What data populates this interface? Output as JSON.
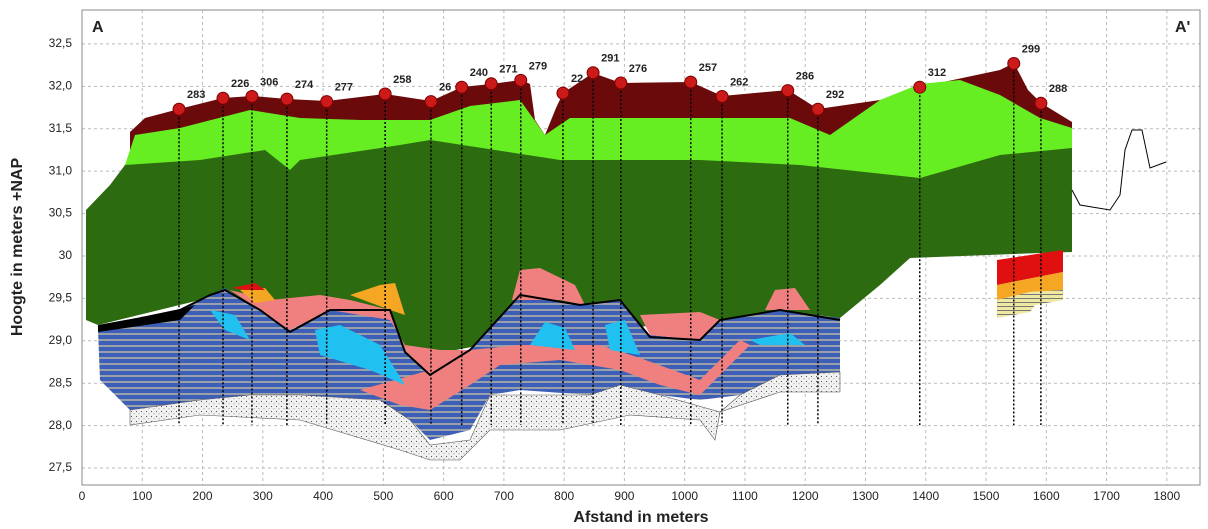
{
  "chart_data": {
    "type": "cross-section",
    "annotations": [
      "A",
      "A'"
    ],
    "xlabel": "Afstand in meters",
    "ylabel": "Hoogte in meters +NAP",
    "xlim": [
      0,
      1855
    ],
    "ylim": [
      27.3,
      32.9
    ],
    "xticks": [
      0,
      100,
      200,
      300,
      400,
      500,
      600,
      700,
      800,
      900,
      1000,
      1100,
      1200,
      1300,
      1400,
      1500,
      1600,
      1700,
      1800
    ],
    "yticks": [
      {
        "value": 27.5,
        "label": "27,5"
      },
      {
        "value": 28.0,
        "label": "28,0"
      },
      {
        "value": 28.5,
        "label": "28,5"
      },
      {
        "value": 29.0,
        "label": "29,0"
      },
      {
        "value": 29.5,
        "label": "29,5"
      },
      30,
      {
        "value": 30.5,
        "label": "30,5"
      },
      {
        "value": 31.0,
        "label": "31,0"
      },
      {
        "value": 31.5,
        "label": "31,5"
      },
      {
        "value": 32.0,
        "label": "32,0"
      },
      {
        "value": 32.5,
        "label": "32,5"
      }
    ],
    "grid": true,
    "marker_color": "#cc1a1a",
    "labels": [
      "283",
      "226",
      "306",
      "274",
      "277",
      "258",
      "26",
      "240",
      "271",
      "279",
      "22",
      "291",
      "276",
      "257",
      "262",
      "286",
      "292",
      "312",
      "299",
      "288"
    ],
    "x": [
      161,
      234,
      282,
      340,
      406,
      503,
      579,
      630,
      679,
      728,
      798,
      848,
      894,
      1010,
      1062,
      1171,
      1221,
      1390,
      1546,
      1591
    ],
    "values": [
      31.73,
      31.86,
      31.88,
      31.85,
      31.82,
      31.91,
      31.82,
      31.99,
      32.03,
      32.07,
      31.92,
      32.16,
      32.04,
      32.05,
      31.88,
      31.95,
      31.73,
      31.99,
      32.27,
      31.8
    ]
  }
}
